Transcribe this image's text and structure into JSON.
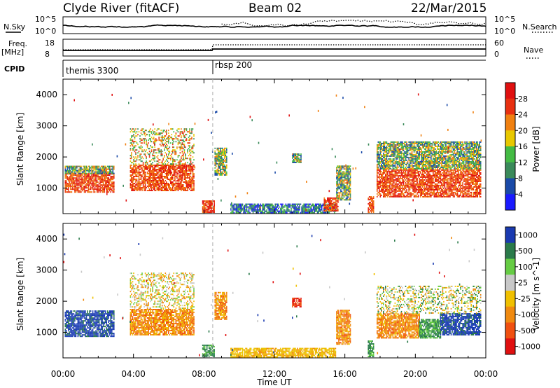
{
  "header": {
    "station": "Clyde River (fitACF)",
    "beam": "Beam 02",
    "date": "22/Mar/2015"
  },
  "summary": {
    "nsky_label": "N.Sky",
    "nsky_ticks": [
      "10^5",
      "10^0"
    ],
    "nsearch_label": "N.Search",
    "nsearch_ticks": [
      "10^5",
      "10^0"
    ],
    "freq_label": "Freq.",
    "freq_unit": "[MHz]",
    "freq_ticks": [
      "18",
      "8"
    ],
    "nave_label": "Nave",
    "nave_ticks": [
      "60",
      "0"
    ],
    "cpid_label": "CPID",
    "cpid_segments": [
      {
        "name": "themis 3300",
        "start_hour": 0
      },
      {
        "name": "rbsp 200",
        "start_hour": 8.5
      }
    ]
  },
  "chart_data": [
    {
      "type": "heatmap",
      "name": "power",
      "ylabel": "Slant Range [km]",
      "yticks": [
        1000,
        2000,
        3000,
        4000
      ],
      "ylim": [
        180,
        4500
      ],
      "xlim": [
        0,
        24
      ],
      "colorbar": {
        "label": "Power [dB]",
        "ticks": [
          "4",
          "8",
          "12",
          "16",
          "20",
          "24",
          "28"
        ],
        "range": [
          0,
          30
        ],
        "colors": [
          "#1a1aff",
          "#1a4aa8",
          "#3a8a5a",
          "#44bb44",
          "#e8c800",
          "#f08010",
          "#e83010",
          "#e01010"
        ]
      },
      "blobs": [
        {
          "t0": 0.1,
          "t1": 2.9,
          "r0": 850,
          "r1": 1450,
          "level": "hot"
        },
        {
          "t0": 0.1,
          "t1": 2.9,
          "r0": 1450,
          "r1": 1700,
          "level": "mid"
        },
        {
          "t0": 3.8,
          "t1": 7.4,
          "r0": 900,
          "r1": 1750,
          "level": "hot"
        },
        {
          "t0": 3.8,
          "t1": 7.4,
          "r0": 1750,
          "r1": 2900,
          "level": "sparse"
        },
        {
          "t0": 7.9,
          "t1": 8.6,
          "r0": 200,
          "r1": 600,
          "level": "hot"
        },
        {
          "t0": 8.6,
          "t1": 9.3,
          "r0": 1400,
          "r1": 2300,
          "level": "mid"
        },
        {
          "t0": 9.5,
          "t1": 15.5,
          "r0": 190,
          "r1": 480,
          "level": "low"
        },
        {
          "t0": 14.8,
          "t1": 15.6,
          "r0": 250,
          "r1": 700,
          "level": "hot"
        },
        {
          "t0": 15.5,
          "t1": 16.3,
          "r0": 600,
          "r1": 1700,
          "level": "mid"
        },
        {
          "t0": 17.3,
          "t1": 17.6,
          "r0": 200,
          "r1": 700,
          "level": "hot"
        },
        {
          "t0": 17.8,
          "t1": 23.7,
          "r0": 700,
          "r1": 1600,
          "level": "hot"
        },
        {
          "t0": 17.8,
          "t1": 23.7,
          "r0": 1600,
          "r1": 2500,
          "level": "mid"
        },
        {
          "t0": 13.0,
          "t1": 13.5,
          "r0": 1800,
          "r1": 2100,
          "level": "mid"
        }
      ]
    },
    {
      "type": "heatmap",
      "name": "velocity",
      "ylabel": "Slant Range [km]",
      "yticks": [
        1000,
        2000,
        3000,
        4000
      ],
      "ylim": [
        180,
        4500
      ],
      "xlim": [
        0,
        24
      ],
      "xticks": [
        "00:00",
        "04:00",
        "08:00",
        "12:00",
        "16:00",
        "20:00",
        "00:00"
      ],
      "xlabel": "Time UT",
      "colorbar": {
        "label": "Velocity [m s^-1]",
        "ticks": [
          "1000",
          "500",
          "100",
          "25",
          "-25",
          "-100",
          "-500",
          "-1000"
        ],
        "colors": [
          "#1a3ab0",
          "#2a7a4a",
          "#66cc44",
          "#c8c8c8",
          "#f0c000",
          "#f08a10",
          "#f05010",
          "#e01010"
        ]
      },
      "blobs": [
        {
          "t0": 0.1,
          "t1": 2.9,
          "r0": 850,
          "r1": 1700,
          "level": "blue"
        },
        {
          "t0": 3.8,
          "t1": 7.4,
          "r0": 900,
          "r1": 1750,
          "level": "orange"
        },
        {
          "t0": 3.8,
          "t1": 7.4,
          "r0": 1750,
          "r1": 2900,
          "level": "sparse"
        },
        {
          "t0": 7.9,
          "t1": 8.6,
          "r0": 200,
          "r1": 600,
          "level": "green"
        },
        {
          "t0": 8.6,
          "t1": 9.3,
          "r0": 1400,
          "r1": 2300,
          "level": "orange"
        },
        {
          "t0": 9.5,
          "t1": 15.5,
          "r0": 190,
          "r1": 480,
          "level": "yellow"
        },
        {
          "t0": 13.0,
          "t1": 13.5,
          "r0": 1800,
          "r1": 2100,
          "level": "red"
        },
        {
          "t0": 15.5,
          "t1": 16.3,
          "r0": 600,
          "r1": 1700,
          "level": "orange"
        },
        {
          "t0": 17.3,
          "t1": 17.6,
          "r0": 200,
          "r1": 700,
          "level": "green"
        },
        {
          "t0": 17.8,
          "t1": 20.2,
          "r0": 800,
          "r1": 1600,
          "level": "orange"
        },
        {
          "t0": 20.2,
          "t1": 21.4,
          "r0": 800,
          "r1": 1400,
          "level": "green"
        },
        {
          "t0": 21.4,
          "t1": 23.7,
          "r0": 900,
          "r1": 1600,
          "level": "blue"
        },
        {
          "t0": 17.8,
          "t1": 23.7,
          "r0": 1600,
          "r1": 2500,
          "level": "mix"
        }
      ]
    }
  ]
}
